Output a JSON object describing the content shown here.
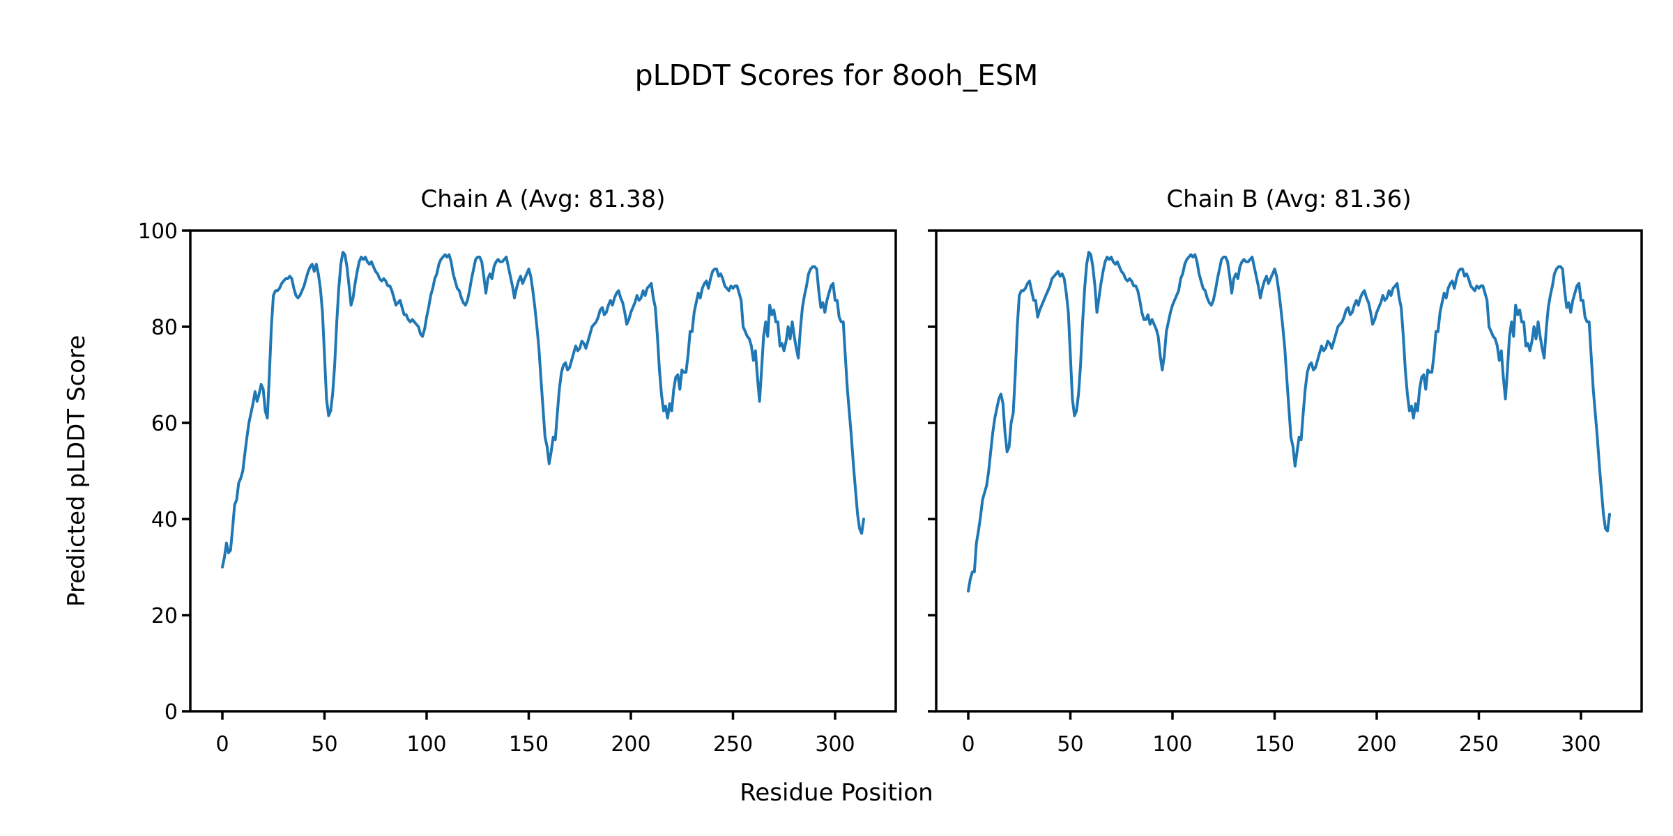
{
  "chart_data": {
    "type": "line",
    "suptitle": "pLDDT Scores for 8ooh_ESM",
    "xlabel": "Residue Position",
    "ylabel": "Predicted pLDDT Score",
    "line_color": "#1f77b4",
    "axis_color": "#000000",
    "background_color": "#ffffff",
    "xlim": [
      -15.7,
      329.7
    ],
    "ylim": [
      0,
      100
    ],
    "xticks": [
      0,
      50,
      100,
      150,
      200,
      250,
      300
    ],
    "yticks": [
      0,
      20,
      40,
      60,
      80,
      100
    ],
    "grid": false,
    "legend": "none",
    "subplots": [
      {
        "title": "Chain A (Avg: 81.38)",
        "chain": "A",
        "avg_plddt": 81.38,
        "x_start": 0,
        "x_step": 1,
        "values": [
          30,
          32,
          35,
          33,
          33.5,
          38,
          43,
          44,
          47.5,
          48.5,
          50,
          53.5,
          57,
          60,
          62,
          64,
          66.5,
          64.5,
          66,
          68,
          67,
          62.5,
          61,
          70,
          80,
          86.5,
          87.5,
          87.5,
          88,
          89,
          89.5,
          90,
          90,
          90.5,
          90,
          88,
          86.5,
          86,
          86.5,
          87.5,
          88.5,
          90,
          91.5,
          92.5,
          93,
          91.5,
          93,
          91,
          88,
          83,
          74,
          65,
          61.5,
          62.5,
          66,
          72,
          81,
          88,
          93,
          95.5,
          95,
          92.5,
          88.5,
          84.5,
          86,
          89,
          91.5,
          93.5,
          94.5,
          94,
          94.5,
          93.5,
          93,
          93.5,
          92.5,
          91.5,
          91,
          90,
          89.5,
          90,
          89.5,
          88.5,
          88.5,
          87.5,
          86,
          84.5,
          85,
          85.5,
          84,
          82.5,
          82.5,
          81.5,
          81,
          81.5,
          81,
          80.5,
          80,
          78.5,
          78,
          79.5,
          82,
          84,
          86.5,
          88,
          90,
          91,
          93,
          94,
          94.5,
          95,
          94.5,
          95,
          93.5,
          91,
          89.5,
          88,
          87.5,
          86,
          85,
          84.5,
          85.5,
          87.5,
          90,
          92,
          94,
          94.5,
          94.5,
          93.5,
          90.5,
          87,
          90,
          91,
          90,
          92.5,
          93.5,
          94,
          93.5,
          93.5,
          94,
          94.5,
          92.5,
          90.5,
          88.5,
          86,
          88,
          89.5,
          90.5,
          89,
          90,
          91,
          92,
          90.5,
          87.5,
          84,
          80,
          75.5,
          69,
          63,
          57,
          55,
          51.5,
          54,
          57,
          56.5,
          62,
          67,
          70.5,
          72,
          72.5,
          71,
          71.5,
          73,
          74.5,
          76,
          75,
          75.5,
          77,
          76.5,
          75.5,
          77,
          78.5,
          80,
          80.5,
          81,
          82,
          83.5,
          84,
          82.5,
          83,
          84.5,
          85.5,
          84.5,
          86,
          87,
          87.5,
          86,
          85,
          83,
          80.5,
          81.5,
          83,
          84,
          85,
          86.5,
          85.5,
          86,
          87.5,
          86.5,
          88,
          88.5,
          89,
          86,
          84,
          78,
          71,
          66,
          62.5,
          63.5,
          61,
          64,
          62.5,
          67,
          69.5,
          70,
          67,
          71,
          70.5,
          70.5,
          74,
          79,
          79,
          83,
          85,
          87,
          86,
          88,
          89,
          89.5,
          88,
          90,
          91.5,
          92,
          92,
          90.5,
          91,
          90,
          88.5,
          88,
          87.5,
          88.5,
          88,
          88.5,
          88.5,
          87,
          85.5,
          80,
          79,
          78,
          77.5,
          76,
          73,
          75,
          69.5,
          64.5,
          71,
          78,
          81,
          78,
          84.5,
          82.5,
          83.5,
          81,
          81,
          76,
          76.5,
          75,
          77,
          80,
          77.5,
          81,
          78,
          75.5,
          73.5,
          79.5,
          84,
          86.5,
          88.5,
          91,
          92,
          92.5,
          92.5,
          92,
          87.5,
          84,
          85,
          83,
          85.5,
          87,
          88.5,
          89,
          85.5,
          85.5,
          82,
          81,
          81,
          74,
          67,
          62,
          57,
          51,
          46,
          41,
          38,
          37,
          40
        ]
      },
      {
        "title": "Chain B (Avg: 81.36)",
        "chain": "B",
        "avg_plddt": 81.36,
        "x_start": 0,
        "x_step": 1,
        "values": [
          25,
          27.5,
          29,
          29,
          35,
          37.5,
          40.5,
          44,
          45.5,
          47,
          50,
          54,
          58,
          61,
          63,
          65,
          66,
          64,
          58,
          54,
          55,
          60,
          62,
          70,
          80,
          86.5,
          87.5,
          87.5,
          88,
          89,
          89.5,
          87.5,
          85.5,
          85.5,
          82,
          83.5,
          84.5,
          85.5,
          86.5,
          87.5,
          88.5,
          90,
          90.5,
          91,
          91.5,
          90.5,
          91,
          90,
          87,
          83,
          74,
          65,
          61.5,
          62.5,
          66,
          72,
          81,
          88,
          93,
          95.5,
          95,
          92.5,
          88.5,
          83,
          86,
          89,
          91.5,
          93.5,
          94.5,
          94,
          94.5,
          93.5,
          93,
          93.5,
          92.5,
          91.5,
          91,
          90,
          89.5,
          90,
          89.5,
          88.5,
          88.5,
          87.5,
          85.5,
          83,
          81.5,
          81.5,
          82.5,
          80.5,
          81.5,
          80.5,
          79.5,
          78,
          74,
          71,
          74,
          79,
          81,
          83,
          84.5,
          85.5,
          86.5,
          87.5,
          90,
          91,
          93,
          94,
          94.5,
          95,
          94.5,
          95,
          93.5,
          91,
          89.5,
          88,
          87.5,
          86,
          85,
          84.5,
          85.5,
          87.5,
          90,
          92,
          94,
          94.5,
          94.5,
          93.5,
          90.5,
          87,
          90,
          91,
          90,
          92.5,
          93.5,
          94,
          93.5,
          93.5,
          94,
          94.5,
          92.5,
          90.5,
          88.5,
          86,
          88,
          89.5,
          90.5,
          89,
          90,
          91,
          92,
          90.5,
          87.5,
          84,
          80,
          75.5,
          69,
          63,
          57,
          55,
          51,
          54,
          57,
          56.5,
          62,
          67,
          70.5,
          72,
          72.5,
          71,
          71.5,
          73,
          74.5,
          76,
          75,
          75.5,
          77,
          76.5,
          75.5,
          77,
          78.5,
          80,
          80.5,
          81,
          82,
          83.5,
          84,
          82.5,
          83,
          84.5,
          85.5,
          84.5,
          86,
          87,
          87.5,
          86,
          85,
          83,
          80.5,
          81.5,
          83,
          84,
          85,
          86.5,
          85.5,
          86,
          87.5,
          86.5,
          88,
          88.5,
          89,
          86,
          84,
          78,
          71,
          66,
          62.5,
          63.5,
          61,
          64,
          62.5,
          67,
          69.5,
          70,
          67,
          71,
          70.5,
          70.5,
          74,
          79,
          79,
          83,
          85,
          87,
          86,
          88,
          89,
          89.5,
          88,
          90,
          91.5,
          92,
          92,
          90.5,
          91,
          90,
          88.5,
          88,
          87.5,
          88.5,
          88,
          88.5,
          88.5,
          87,
          85.5,
          80,
          79,
          78,
          77.5,
          76,
          73,
          75,
          69.5,
          65,
          71,
          78,
          81,
          78,
          84.5,
          82.5,
          83.5,
          81,
          81,
          76,
          76.5,
          75,
          77,
          80,
          77.5,
          81,
          78,
          75.5,
          73.5,
          79.5,
          84,
          86.5,
          88.5,
          91,
          92,
          92.5,
          92.5,
          92,
          87.5,
          84,
          85,
          83,
          85.5,
          87,
          88.5,
          89,
          85.5,
          85.5,
          82,
          81,
          81,
          74,
          67,
          62,
          57,
          51,
          46,
          41,
          38,
          37.5,
          41
        ]
      }
    ]
  }
}
